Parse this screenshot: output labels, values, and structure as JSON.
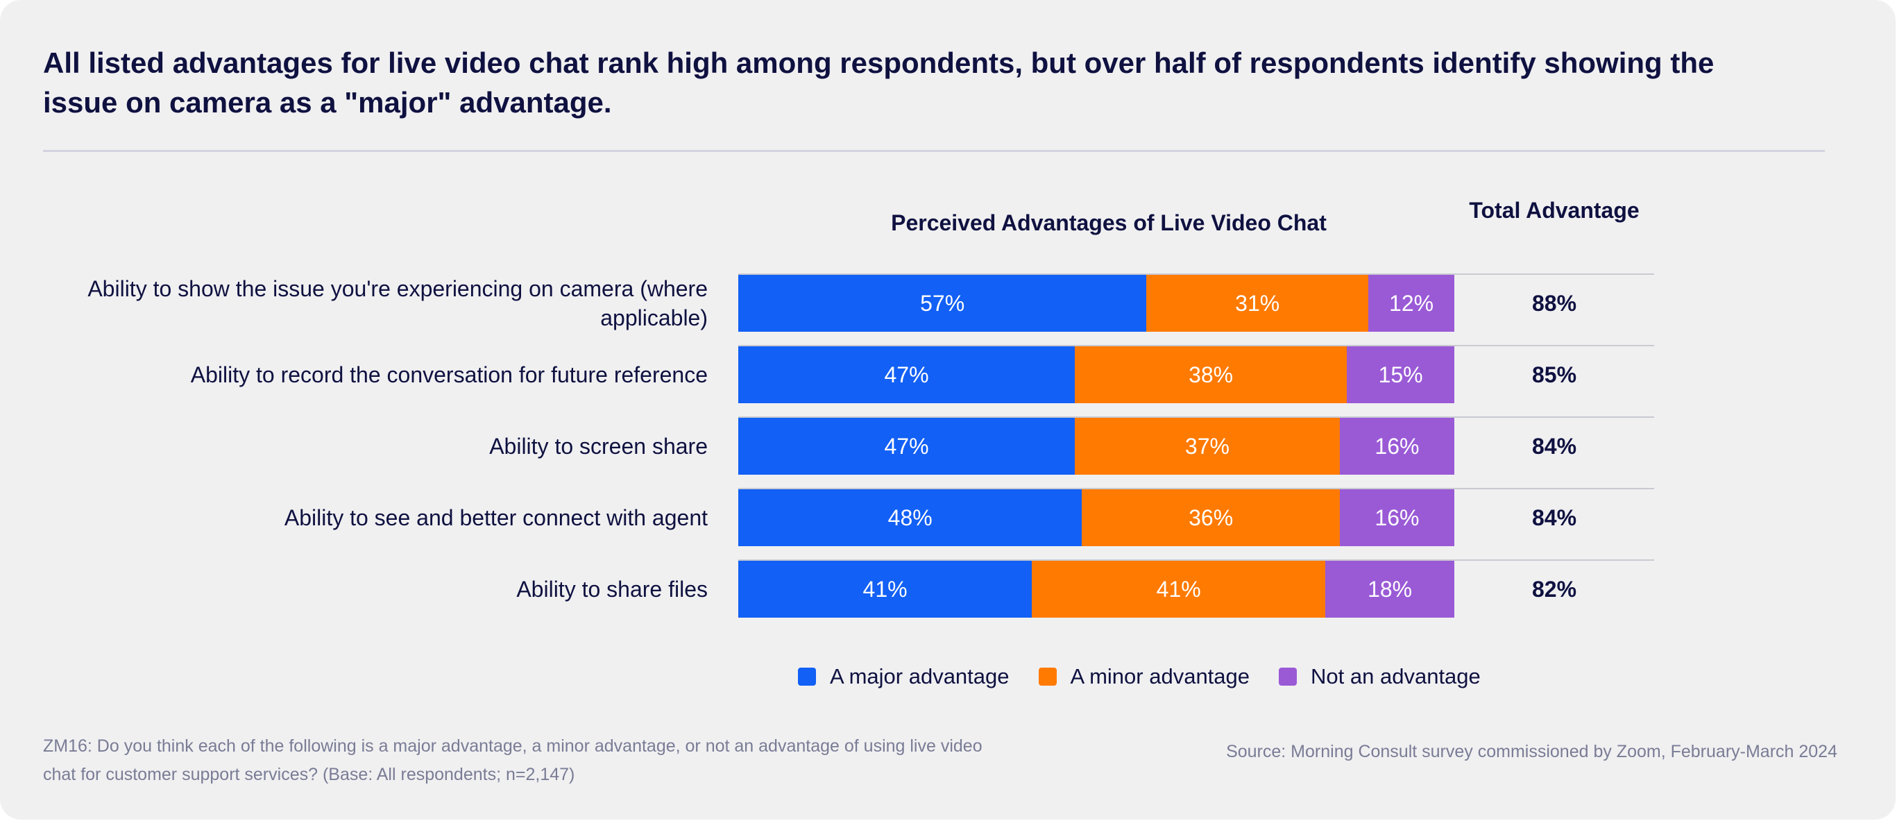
{
  "headline": "All listed advantages for live video chat rank high among respondents, but over half of respondents identify showing the issue on camera as a \"major\" advantage.",
  "chart_data": {
    "type": "bar",
    "orientation": "horizontal",
    "stacked": true,
    "title": "Perceived Advantages of Live Video Chat",
    "categories": [
      "Ability to show the issue you're experiencing on camera (where applicable)",
      "Ability to record the conversation for future reference",
      "Ability to screen share",
      "Ability to see and better connect with agent",
      "Ability to share files"
    ],
    "series": [
      {
        "name": "A major advantage",
        "color": "#1260f5",
        "values": [
          57,
          47,
          47,
          48,
          41
        ]
      },
      {
        "name": "A minor advantage",
        "color": "#ff7a00",
        "values": [
          31,
          38,
          37,
          36,
          41
        ]
      },
      {
        "name": "Not an advantage",
        "color": "#9a5ad6",
        "values": [
          12,
          15,
          16,
          16,
          18
        ]
      }
    ],
    "value_suffix": "%",
    "total_column": {
      "header": "Total Advantage",
      "values": [
        "88%",
        "85%",
        "84%",
        "84%",
        "82%"
      ]
    },
    "xlim": [
      0,
      100
    ],
    "legend_position": "bottom",
    "grid": false
  },
  "footnote": "ZM16: Do you think each of the following is a major advantage, a minor advantage, or not an advantage of using live video chat for customer support services? (Base: All respondents; n=2,147)",
  "source": "Source: Morning Consult survey commissioned by Zoom, February-March 2024"
}
